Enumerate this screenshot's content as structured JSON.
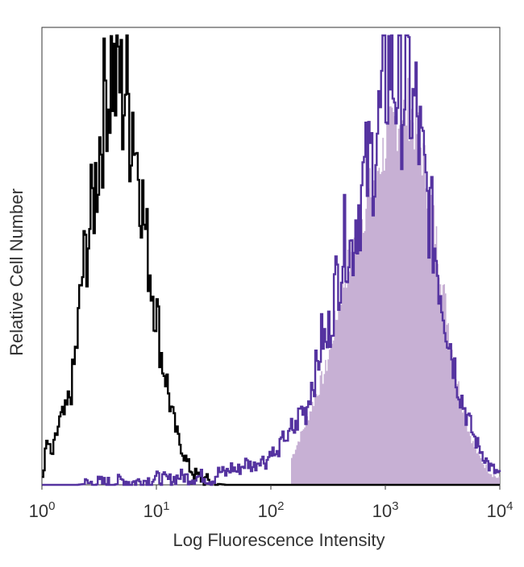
{
  "chart_data": {
    "type": "area",
    "title": "",
    "xlabel": "Log Fluorescence Intensity",
    "ylabel": "Relative Cell Number",
    "xscale": "log",
    "xlim": [
      1,
      10000
    ],
    "ylim": [
      0,
      100
    ],
    "grid": false,
    "legend": "none",
    "x_ticks": [
      {
        "base": "10",
        "exp": "0",
        "value": 1
      },
      {
        "base": "10",
        "exp": "1",
        "value": 10
      },
      {
        "base": "10",
        "exp": "2",
        "value": 100
      },
      {
        "base": "10",
        "exp": "3",
        "value": 1000
      },
      {
        "base": "10",
        "exp": "4",
        "value": 10000
      }
    ],
    "series": [
      {
        "style": "outline",
        "color": "#000000",
        "x": [
          1.0,
          1.1,
          1.2,
          1.4,
          1.6,
          1.8,
          2.0,
          2.2,
          2.5,
          2.8,
          3.0,
          3.2,
          3.4,
          3.6,
          3.8,
          4.0,
          4.3,
          4.6,
          5.0,
          5.4,
          5.8,
          6.2,
          6.6,
          7.0,
          7.5,
          8.0,
          8.5,
          9.0,
          10,
          11,
          12,
          13,
          14,
          15,
          17,
          19,
          21,
          24,
          28,
          32,
          40,
          60,
          100,
          1000,
          10000
        ],
        "y": [
          2,
          10,
          6,
          14,
          16,
          22,
          32,
          46,
          55,
          64,
          70,
          78,
          82,
          92,
          86,
          95,
          88,
          94,
          85,
          91,
          80,
          84,
          74,
          72,
          62,
          55,
          50,
          45,
          38,
          28,
          24,
          18,
          14,
          11,
          7,
          4,
          2.5,
          1.5,
          0.8,
          0.3,
          0,
          0,
          0,
          0,
          0
        ]
      },
      {
        "style": "outline",
        "color": "#5533a0",
        "x": [
          1,
          2,
          3,
          4,
          5,
          6,
          8,
          10,
          13,
          16,
          20,
          25,
          30,
          35,
          40,
          45,
          50,
          60,
          70,
          80,
          90,
          100,
          110,
          120,
          130,
          140,
          150,
          160,
          180,
          200,
          220,
          250,
          280,
          300,
          350,
          400,
          450,
          500,
          550,
          600,
          650,
          700,
          800,
          900,
          1000,
          1100,
          1200,
          1300,
          1400,
          1500,
          1600,
          1700,
          1800,
          1900,
          2000,
          2200,
          2500,
          3000,
          3500,
          4000,
          4500,
          5000,
          6000,
          7000,
          8000,
          9000,
          10000
        ],
        "y": [
          0,
          0,
          0.5,
          0.3,
          1,
          0.5,
          1,
          1.5,
          1,
          2,
          1.5,
          2,
          1,
          3,
          2.5,
          4,
          3,
          5,
          4,
          6,
          5,
          8,
          6,
          9,
          11,
          10,
          13,
          12,
          17,
          16,
          22,
          26,
          34,
          30,
          42,
          50,
          56,
          52,
          60,
          64,
          68,
          70,
          75,
          82,
          90,
          96,
          88,
          92,
          85,
          94,
          90,
          80,
          86,
          79,
          75,
          66,
          58,
          44,
          34,
          26,
          20,
          16,
          10,
          7,
          4,
          3,
          2
        ]
      },
      {
        "style": "filled",
        "color": "#c7b0d4",
        "x": [
          150,
          200,
          300,
          400,
          500,
          700,
          1000,
          1300,
          1600,
          1800,
          2000,
          2500,
          3000,
          3500,
          4000,
          5000,
          6000,
          7000,
          8000,
          9000,
          10000
        ],
        "y": [
          6,
          14,
          26,
          42,
          52,
          64,
          76,
          82,
          84,
          80,
          76,
          62,
          48,
          36,
          26,
          14,
          8,
          5,
          3,
          2,
          1
        ]
      }
    ]
  }
}
